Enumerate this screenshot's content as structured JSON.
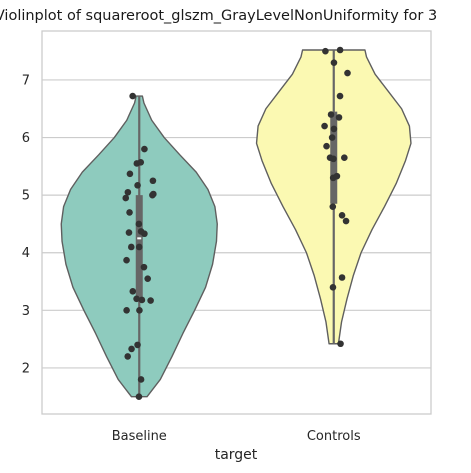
{
  "chart_data": {
    "type": "violin",
    "title": "Violinplot of squareroot_glszm_GrayLevelNonUniformity for 3",
    "xlabel": "target",
    "ylabel": "",
    "ylim": [
      1.2,
      7.85
    ],
    "yticks": [
      2,
      3,
      4,
      5,
      6,
      7
    ],
    "grid": true,
    "categories": [
      "Baseline",
      "Controls"
    ],
    "colors": {
      "Baseline": "#8ecbbe",
      "Controls": "#fbf9b2",
      "outline": "#5f5f5f",
      "points": "#333333",
      "box": "#666666",
      "grid": "#cccccc",
      "median": "#ffffff"
    },
    "groups": [
      {
        "name": "Baseline",
        "min": 1.5,
        "max": 6.72,
        "q1": 3.2,
        "median": 4.25,
        "q3": 5.0,
        "whisker_low": 1.5,
        "whisker_high": 6.72,
        "density": [
          [
            1.5,
            0.1
          ],
          [
            1.8,
            0.27
          ],
          [
            2.2,
            0.42
          ],
          [
            2.6,
            0.56
          ],
          [
            3.0,
            0.71
          ],
          [
            3.4,
            0.85
          ],
          [
            3.8,
            0.94
          ],
          [
            4.2,
            0.99
          ],
          [
            4.5,
            1.0
          ],
          [
            4.8,
            0.97
          ],
          [
            5.1,
            0.88
          ],
          [
            5.4,
            0.73
          ],
          [
            5.7,
            0.52
          ],
          [
            6.0,
            0.32
          ],
          [
            6.3,
            0.16
          ],
          [
            6.6,
            0.06
          ],
          [
            6.72,
            0.04
          ]
        ],
        "points": [
          1.5,
          1.8,
          2.2,
          2.33,
          2.4,
          3.0,
          3.0,
          3.17,
          3.18,
          3.2,
          3.33,
          3.55,
          3.75,
          3.87,
          4.1,
          4.1,
          4.33,
          4.35,
          4.37,
          4.5,
          4.7,
          4.95,
          5.0,
          5.02,
          5.05,
          5.17,
          5.25,
          5.37,
          5.55,
          5.57,
          5.8,
          6.72
        ]
      },
      {
        "name": "Controls",
        "min": 2.42,
        "max": 7.52,
        "q1": 4.85,
        "median": 5.63,
        "q3": 6.45,
        "whisker_low": 2.42,
        "whisker_high": 7.52,
        "density": [
          [
            2.42,
            0.06
          ],
          [
            2.8,
            0.1
          ],
          [
            3.2,
            0.17
          ],
          [
            3.6,
            0.25
          ],
          [
            4.0,
            0.35
          ],
          [
            4.4,
            0.49
          ],
          [
            4.8,
            0.65
          ],
          [
            5.2,
            0.8
          ],
          [
            5.6,
            0.92
          ],
          [
            5.9,
            0.99
          ],
          [
            6.2,
            0.97
          ],
          [
            6.5,
            0.87
          ],
          [
            6.8,
            0.7
          ],
          [
            7.1,
            0.53
          ],
          [
            7.4,
            0.42
          ],
          [
            7.52,
            0.4
          ]
        ],
        "points": [
          2.42,
          3.4,
          3.57,
          4.55,
          4.65,
          4.8,
          5.3,
          5.33,
          5.63,
          5.65,
          5.65,
          5.85,
          6.0,
          6.15,
          6.2,
          6.35,
          6.4,
          6.72,
          7.12,
          7.3,
          7.5,
          7.52
        ]
      }
    ]
  }
}
